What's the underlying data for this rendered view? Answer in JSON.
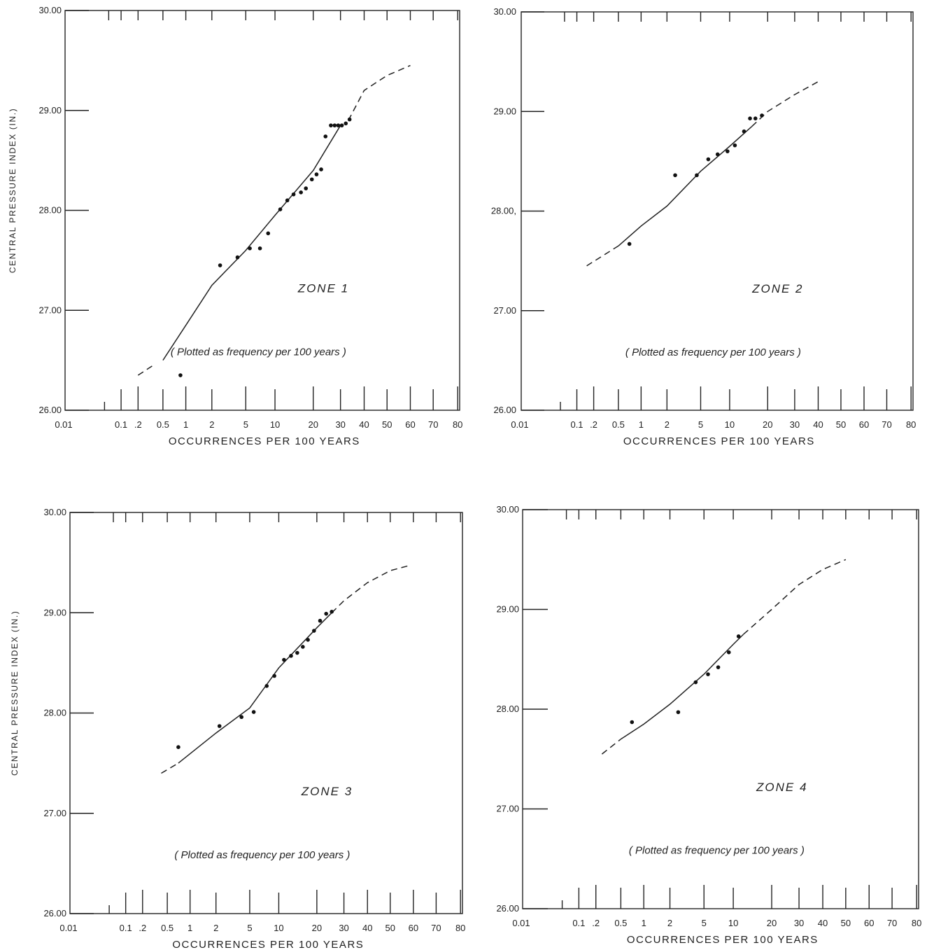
{
  "chart_data": [
    {
      "type": "scatter",
      "panel": "zone-1",
      "annotation": "ZONE 1",
      "note": "( Plotted as frequency per 100 years )",
      "xlabel": "OCCURRENCES PER 100 YEARS",
      "ylabel": "CENTRAL PRESSURE INDEX (IN.)",
      "xscale": "probability",
      "ylim": [
        26.0,
        30.0
      ],
      "x_tick_labels": [
        "0.01",
        "0.1",
        ".2",
        "0.5",
        "1",
        "2",
        "5",
        "10",
        "20",
        "30",
        "40",
        "50",
        "60",
        "70",
        "80"
      ],
      "y_tick_labels": [
        "30.00",
        "29.00",
        "28.00",
        "27.00",
        "26.00"
      ],
      "points": [
        {
          "x": 0.85,
          "y": 26.35
        },
        {
          "x": 2.5,
          "y": 27.45
        },
        {
          "x": 4,
          "y": 27.53
        },
        {
          "x": 5.5,
          "y": 27.62
        },
        {
          "x": 7,
          "y": 27.62
        },
        {
          "x": 8.5,
          "y": 27.77
        },
        {
          "x": 11,
          "y": 28.01
        },
        {
          "x": 12.5,
          "y": 28.1
        },
        {
          "x": 14,
          "y": 28.16
        },
        {
          "x": 16,
          "y": 28.18
        },
        {
          "x": 17.5,
          "y": 28.22
        },
        {
          "x": 19.5,
          "y": 28.31
        },
        {
          "x": 21,
          "y": 28.36
        },
        {
          "x": 22.5,
          "y": 28.41
        },
        {
          "x": 24,
          "y": 28.74
        },
        {
          "x": 26,
          "y": 28.85
        },
        {
          "x": 27.5,
          "y": 28.85
        },
        {
          "x": 29,
          "y": 28.85
        },
        {
          "x": 30.5,
          "y": 28.85
        },
        {
          "x": 32,
          "y": 28.87
        },
        {
          "x": 33.5,
          "y": 28.91
        }
      ],
      "fit_solid": [
        {
          "x": 0.5,
          "y": 26.5
        },
        {
          "x": 1,
          "y": 26.85
        },
        {
          "x": 2,
          "y": 27.25
        },
        {
          "x": 5,
          "y": 27.6
        },
        {
          "x": 10,
          "y": 27.95
        },
        {
          "x": 20,
          "y": 28.4
        },
        {
          "x": 30,
          "y": 28.85
        }
      ],
      "fit_dash_low": [
        {
          "x": 0.2,
          "y": 26.35
        },
        {
          "x": 0.35,
          "y": 26.45
        }
      ],
      "fit_dash_high": [
        {
          "x": 33,
          "y": 28.9
        },
        {
          "x": 40,
          "y": 29.2
        },
        {
          "x": 50,
          "y": 29.35
        },
        {
          "x": 60,
          "y": 29.45
        }
      ]
    },
    {
      "type": "scatter",
      "panel": "zone-2",
      "annotation": "ZONE 2",
      "note": "( Plotted as frequency per 100 years )",
      "xlabel": "OCCURRENCES PER 100 YEARS",
      "ylabel": "",
      "xscale": "probability",
      "ylim": [
        26.0,
        30.0
      ],
      "x_tick_labels": [
        "0.01",
        "0.1",
        ".2",
        "0.5",
        "1",
        "2",
        "5",
        "10",
        "20",
        "30",
        "40",
        "50",
        "60",
        "70",
        "80"
      ],
      "y_tick_labels": [
        "30.00",
        "29.00",
        "28.00,",
        "27.00",
        "26.00"
      ],
      "points": [
        {
          "x": 0.7,
          "y": 27.67
        },
        {
          "x": 2.5,
          "y": 28.36
        },
        {
          "x": 4.5,
          "y": 28.36
        },
        {
          "x": 6,
          "y": 28.52
        },
        {
          "x": 7.5,
          "y": 28.57
        },
        {
          "x": 9.5,
          "y": 28.6
        },
        {
          "x": 11,
          "y": 28.66
        },
        {
          "x": 13,
          "y": 28.8
        },
        {
          "x": 14.5,
          "y": 28.93
        },
        {
          "x": 16,
          "y": 28.93
        },
        {
          "x": 18,
          "y": 28.96
        }
      ],
      "fit_solid": [
        {
          "x": 0.5,
          "y": 27.65
        },
        {
          "x": 1,
          "y": 27.85
        },
        {
          "x": 2,
          "y": 28.05
        },
        {
          "x": 5,
          "y": 28.4
        },
        {
          "x": 10,
          "y": 28.65
        },
        {
          "x": 15,
          "y": 28.85
        }
      ],
      "fit_dash_low": [
        {
          "x": 0.15,
          "y": 27.45
        },
        {
          "x": 0.5,
          "y": 27.65
        }
      ],
      "fit_dash_high": [
        {
          "x": 15,
          "y": 28.85
        },
        {
          "x": 20,
          "y": 29.0
        },
        {
          "x": 30,
          "y": 29.17
        },
        {
          "x": 40,
          "y": 29.3
        }
      ]
    },
    {
      "type": "scatter",
      "panel": "zone-3",
      "annotation": "ZONE 3",
      "note": "( Plotted as frequency per 100 years )",
      "xlabel": "OCCURRENCES PER 100 YEARS",
      "ylabel": "CENTRAL PRESSURE INDEX (IN.)",
      "xscale": "probability",
      "ylim": [
        26.0,
        30.0
      ],
      "x_tick_labels": [
        "0.01",
        "0.1",
        ".2",
        "0.5",
        "1",
        "2",
        "5",
        "10",
        "20",
        "30",
        "40",
        "50",
        "60",
        "70",
        "80"
      ],
      "y_tick_labels": [
        "30.00",
        "29.00",
        "28.00",
        "27.00",
        "26.00"
      ],
      "points": [
        {
          "x": 0.7,
          "y": 27.66
        },
        {
          "x": 2.2,
          "y": 27.87
        },
        {
          "x": 4,
          "y": 27.96
        },
        {
          "x": 5.5,
          "y": 28.01
        },
        {
          "x": 7.5,
          "y": 28.27
        },
        {
          "x": 9,
          "y": 28.37
        },
        {
          "x": 11,
          "y": 28.53
        },
        {
          "x": 12.5,
          "y": 28.57
        },
        {
          "x": 14,
          "y": 28.6
        },
        {
          "x": 15.5,
          "y": 28.66
        },
        {
          "x": 17,
          "y": 28.73
        },
        {
          "x": 19,
          "y": 28.82
        },
        {
          "x": 21,
          "y": 28.92
        },
        {
          "x": 23,
          "y": 28.99
        },
        {
          "x": 25,
          "y": 29.01
        }
      ],
      "fit_solid": [
        {
          "x": 0.7,
          "y": 27.5
        },
        {
          "x": 2,
          "y": 27.8
        },
        {
          "x": 5,
          "y": 28.05
        },
        {
          "x": 10,
          "y": 28.45
        },
        {
          "x": 20,
          "y": 28.85
        },
        {
          "x": 25,
          "y": 29.0
        }
      ],
      "fit_dash_low": [
        {
          "x": 0.4,
          "y": 27.4
        },
        {
          "x": 0.7,
          "y": 27.5
        }
      ],
      "fit_dash_high": [
        {
          "x": 25,
          "y": 29.0
        },
        {
          "x": 30,
          "y": 29.12
        },
        {
          "x": 40,
          "y": 29.3
        },
        {
          "x": 50,
          "y": 29.42
        },
        {
          "x": 58,
          "y": 29.47
        }
      ]
    },
    {
      "type": "scatter",
      "panel": "zone-4",
      "annotation": "ZONE 4",
      "note": "( Plotted as frequency per 100 years )",
      "xlabel": "OCCURRENCES PER 100 YEARS",
      "ylabel": "",
      "xscale": "probability",
      "ylim": [
        26.0,
        30.0
      ],
      "x_tick_labels": [
        "0.01",
        "0.1",
        ".2",
        "0.5",
        "1",
        "2",
        "5",
        "10",
        "20",
        "30",
        "40",
        "50",
        "60",
        "70",
        "80"
      ],
      "y_tick_labels": [
        "30.00",
        "29.00",
        "28.00",
        "27.00",
        "26.00"
      ],
      "points": [
        {
          "x": 0.7,
          "y": 27.87
        },
        {
          "x": 2.5,
          "y": 27.97
        },
        {
          "x": 4,
          "y": 28.27
        },
        {
          "x": 5.5,
          "y": 28.35
        },
        {
          "x": 7,
          "y": 28.42
        },
        {
          "x": 9,
          "y": 28.57
        },
        {
          "x": 11,
          "y": 28.73
        }
      ],
      "fit_solid": [
        {
          "x": 0.5,
          "y": 27.7
        },
        {
          "x": 1,
          "y": 27.85
        },
        {
          "x": 2,
          "y": 28.05
        },
        {
          "x": 5,
          "y": 28.35
        },
        {
          "x": 10,
          "y": 28.65
        },
        {
          "x": 12,
          "y": 28.75
        }
      ],
      "fit_dash_low": [
        {
          "x": 0.25,
          "y": 27.55
        },
        {
          "x": 0.5,
          "y": 27.7
        }
      ],
      "fit_dash_high": [
        {
          "x": 12,
          "y": 28.75
        },
        {
          "x": 20,
          "y": 29.0
        },
        {
          "x": 30,
          "y": 29.25
        },
        {
          "x": 40,
          "y": 29.4
        },
        {
          "x": 50,
          "y": 29.5
        }
      ]
    }
  ]
}
